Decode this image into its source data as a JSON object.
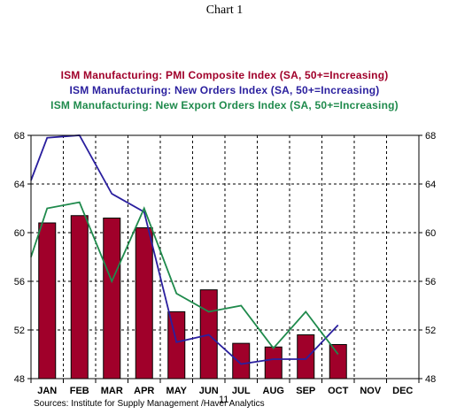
{
  "title": "Chart 1",
  "legend": [
    {
      "label": "ISM Manufacturing: PMI Composite Index (SA, 50+=Increasing)",
      "color": "#a0002a"
    },
    {
      "label": "ISM Manufacturing: New Orders Index (SA, 50+=Increasing)",
      "color": "#2a1f9e"
    },
    {
      "label": "ISM Manufacturing: New Export Orders Index (SA, 50+=Increasing)",
      "color": "#1f8a4c"
    }
  ],
  "source": "Sources:  Institute for Supply Management /Haver Analytics",
  "year_label": "11",
  "chart_data": {
    "type": "bar",
    "categories": [
      "JAN",
      "FEB",
      "MAR",
      "APR",
      "MAY",
      "JUN",
      "JUL",
      "AUG",
      "SEP",
      "OCT",
      "NOV",
      "DEC"
    ],
    "ylim": [
      48,
      68
    ],
    "yticks": [
      48,
      52,
      56,
      60,
      64,
      68
    ],
    "grid": true,
    "series": [
      {
        "name": "ISM Manufacturing: PMI Composite Index (SA, 50+=Increasing)",
        "type": "bar",
        "color": "#a0002a",
        "values": [
          60.8,
          61.4,
          61.2,
          60.4,
          53.5,
          55.3,
          50.9,
          50.6,
          51.6,
          50.8,
          null,
          null
        ]
      },
      {
        "name": "ISM Manufacturing: New Orders Index (SA, 50+=Increasing)",
        "type": "line",
        "color": "#2a1f9e",
        "values": [
          67.8,
          68.0,
          63.2,
          61.7,
          51.0,
          51.6,
          49.2,
          49.6,
          49.6,
          52.4,
          null,
          null
        ]
      },
      {
        "name": "ISM Manufacturing: New Export Orders Index (SA, 50+=Increasing)",
        "type": "line",
        "color": "#1f8a4c",
        "values": [
          62.0,
          62.5,
          56.0,
          62.0,
          55.0,
          53.5,
          54.0,
          50.5,
          53.5,
          50.0,
          null,
          null
        ]
      }
    ],
    "line_start": {
      "New Orders": 64.3,
      "New Export Orders": 58.0
    }
  }
}
